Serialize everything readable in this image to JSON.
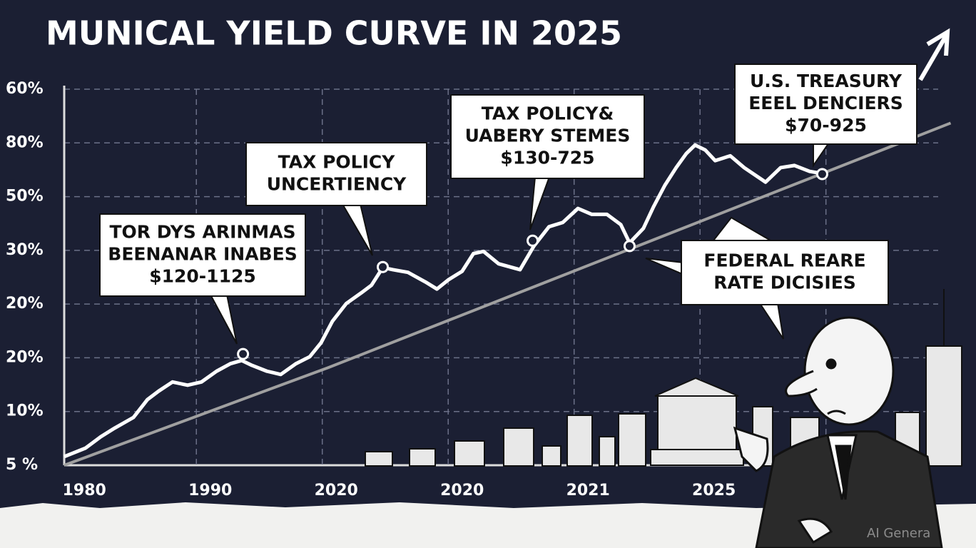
{
  "chart_data": {
    "type": "line",
    "title": "MUNICAL YIELD CURVE IN 2025",
    "y_categories": [
      "5 %",
      "10%",
      "20%",
      "20%",
      "30%",
      "50%",
      "80%",
      "60%"
    ],
    "categories": [
      "1980",
      "1990",
      "2020",
      "2020",
      "2021",
      "2025"
    ],
    "xlim": [
      -0.16,
      6.9
    ],
    "ylim": [
      0,
      7
    ],
    "grid": true,
    "series": [
      {
        "color": "#ffffff",
        "x": [
          -0.16,
          0.01,
          0.13,
          0.24,
          0.39,
          0.5,
          0.59,
          0.7,
          0.82,
          0.93,
          1.05,
          1.16,
          1.25,
          1.33,
          1.45,
          1.56,
          1.68,
          1.79,
          1.88,
          1.97,
          2.08,
          2.2,
          2.28,
          2.37,
          2.45,
          2.57,
          2.71,
          2.8,
          2.89,
          3.0,
          3.09,
          3.17,
          3.29,
          3.46,
          3.57,
          3.69,
          3.8,
          3.92,
          4.03,
          4.15,
          4.26,
          4.33,
          4.44,
          4.52,
          4.61,
          4.7,
          4.78,
          4.85,
          4.93,
          5.01,
          5.13,
          5.24,
          5.41,
          5.53,
          5.64,
          5.76,
          5.86
        ],
        "values": [
          0.16,
          0.32,
          0.53,
          0.69,
          0.89,
          1.22,
          1.38,
          1.55,
          1.49,
          1.55,
          1.75,
          1.89,
          1.95,
          1.86,
          1.75,
          1.69,
          1.89,
          2.02,
          2.28,
          2.68,
          3.01,
          3.21,
          3.35,
          3.68,
          3.64,
          3.59,
          3.41,
          3.28,
          3.45,
          3.61,
          3.94,
          3.98,
          3.75,
          3.64,
          4.08,
          4.44,
          4.52,
          4.78,
          4.67,
          4.67,
          4.48,
          4.14,
          4.41,
          4.81,
          5.21,
          5.54,
          5.8,
          5.96,
          5.87,
          5.67,
          5.76,
          5.54,
          5.27,
          5.54,
          5.58,
          5.47,
          5.43
        ]
      },
      {
        "color": "#a0a0a0",
        "x": [
          -0.16,
          1.94,
          6.88
        ],
        "values": [
          0,
          1.82,
          6.37
        ]
      }
    ],
    "markers": {
      "x": [
        1.26,
        2.37,
        3.56,
        4.33,
        5.86
      ],
      "y": [
        2.07,
        3.69,
        4.18,
        4.08,
        5.42
      ]
    },
    "annotations": [
      {
        "lines": [
          "TOR DYS ARINMAS",
          "BEENANAR INABES",
          "$120-1125"
        ]
      },
      {
        "lines": [
          "TAX POLICY",
          "UNCERTIENCY"
        ]
      },
      {
        "lines": [
          "TAX POLICY&",
          "UABERY STEMES",
          "$130-725"
        ]
      },
      {
        "lines": [
          "U.S. TREASURY",
          "EEEL DENCIERS",
          "$70-925"
        ]
      },
      {
        "lines": [
          "FEDERAL REARE",
          "RATE DICISIES"
        ]
      }
    ],
    "watermark": "AI Genera"
  }
}
